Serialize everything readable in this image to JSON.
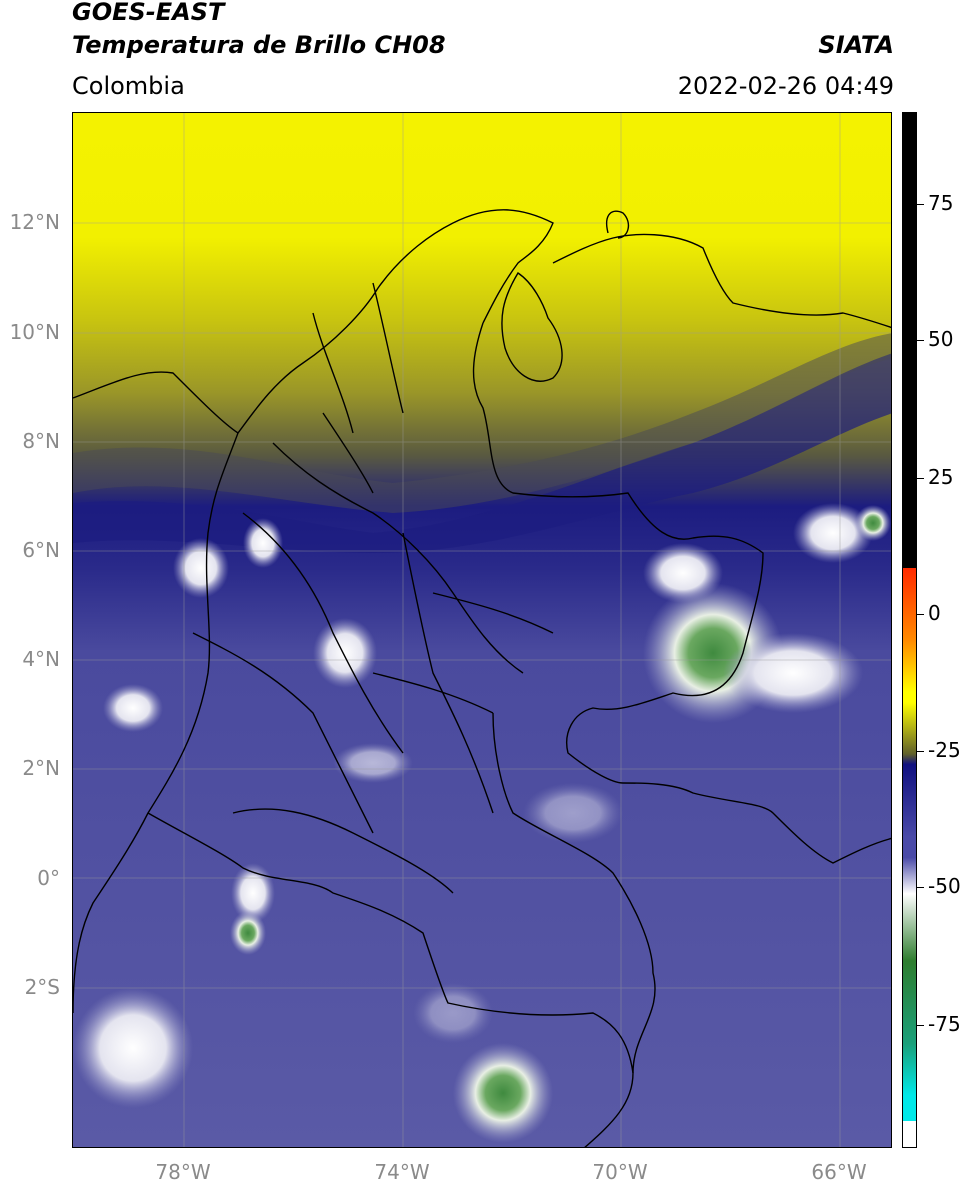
{
  "header": {
    "title_line1": "GOES-EAST",
    "title_line2": "Temperatura de Brillo CH08",
    "org": "SIATA",
    "region": "Colombia",
    "timestamp": "2022-02-26 04:49"
  },
  "map": {
    "lat_labels": [
      "12°N",
      "10°N",
      "8°N",
      "6°N",
      "4°N",
      "2°N",
      "0°",
      "2°S"
    ],
    "lon_labels": [
      "78°W",
      "74°W",
      "70°W",
      "66°W"
    ],
    "colors": {
      "clear_dry_yellow": "#f2f000",
      "olive": "#8a8a30",
      "navy": "#1c1c80",
      "moist_blue": "#5a5aa6",
      "cloud_white": "#e8e8f0",
      "deep_convection_green": "#3f8a3f"
    }
  },
  "colorbar": {
    "tick_labels": [
      "75",
      "50",
      "25",
      "0",
      "-25",
      "-50",
      "-75"
    ],
    "colors": {
      "black": "#000000",
      "red": "#ff2a00",
      "orange": "#ff8a00",
      "yellow": "#ffff00",
      "olive": "#60602a",
      "navy": "#101080",
      "blue": "#4a4aa8",
      "white": "#ffffff",
      "green": "#2e7d2e",
      "teal": "#1aa07a",
      "cyan": "#00e8e8"
    }
  }
}
